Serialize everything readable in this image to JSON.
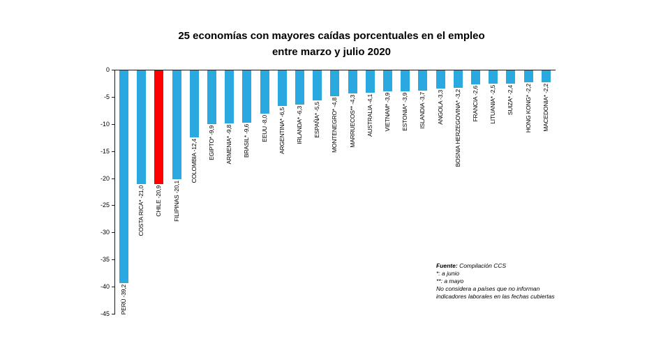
{
  "title": {
    "line1": "25 economías con mayores caídas porcentuales en el empleo",
    "line2": "entre marzo y julio 2020"
  },
  "chart_data": {
    "type": "bar",
    "orientation": "vertical-negative",
    "title": "25 economías con mayores caídas porcentuales en el empleo entre marzo y julio 2020",
    "xlabel": "",
    "ylabel": "",
    "ylim": [
      -45,
      0
    ],
    "yticks": [
      0,
      -5,
      -10,
      -15,
      -20,
      -25,
      -30,
      -35,
      -40,
      -45
    ],
    "grid": false,
    "categories": [
      "PERÚ",
      "COSTA RICA*",
      "CHILE",
      "FILIPINAS",
      "COLOMBIA",
      "EGIPTO*",
      "ARMENIA*",
      "BRASIL*",
      "EEUU",
      "ARGENTINA*",
      "IRLANDA*",
      "ESPAÑA*",
      "MONTENEGRO*",
      "MARRUECOS**",
      "AUSTRALIA",
      "VIETNAM*",
      "ESTONIA*",
      "ISLANDIA",
      "ANGOLA",
      "BOSNIA HERZEGOVINA*",
      "FRANCIA",
      "LITUANIA*",
      "SUIZA*",
      "HONG KONG*",
      "MACEDONIA*"
    ],
    "values": [
      -39.2,
      -21.0,
      -20.9,
      -20.1,
      -12.4,
      -9.9,
      -9.8,
      -9.6,
      -8.0,
      -6.5,
      -6.3,
      -5.5,
      -4.8,
      -4.3,
      -4.1,
      -3.9,
      -3.9,
      -3.7,
      -3.3,
      -3.2,
      -2.6,
      -2.5,
      -2.4,
      -2.2,
      -2.2
    ],
    "labels": [
      "PERÚ -39,2",
      "COSTA RICA* -21,0",
      "CHILE -20,9",
      "FILIPINAS -20,1",
      "COLOMBIA -12,4",
      "EGIPTO* -9,9",
      "ARMENIA* -9,8",
      "BRASIL* -9,6",
      "EEUU -8,0",
      "ARGENTINA* -6,5",
      "IRLANDA* -6,3",
      "ESPAÑA* -5,5",
      "MONTENEGRO* -4,8",
      "MARRUECOS** -4,3",
      "AUSTRALIA -4,1",
      "VIETNAM* -3,9",
      "ESTONIA* -3,9",
      "ISLANDIA -3,7",
      "ANGOLA -3,3",
      "BOSNIA HERZEGOVINA* -3,2",
      "FRANCIA -2,6",
      "LITUANIA* -2,5",
      "SUIZA* -2,4",
      "HONG KONG* -2,2",
      "MACEDONIA* -2,2"
    ],
    "colors": {
      "default": "#29A9E0",
      "highlight": "#FE0000",
      "highlight_category": "CHILE"
    },
    "legend_position": "none"
  },
  "footnote": {
    "source_label": "Fuente:",
    "source_text": " Compilación CCS",
    "lines": [
      "*: a junio",
      "**: a mayo",
      "No considera a países que no informan",
      "indicadores laborales en las fechas cubiertas"
    ]
  }
}
